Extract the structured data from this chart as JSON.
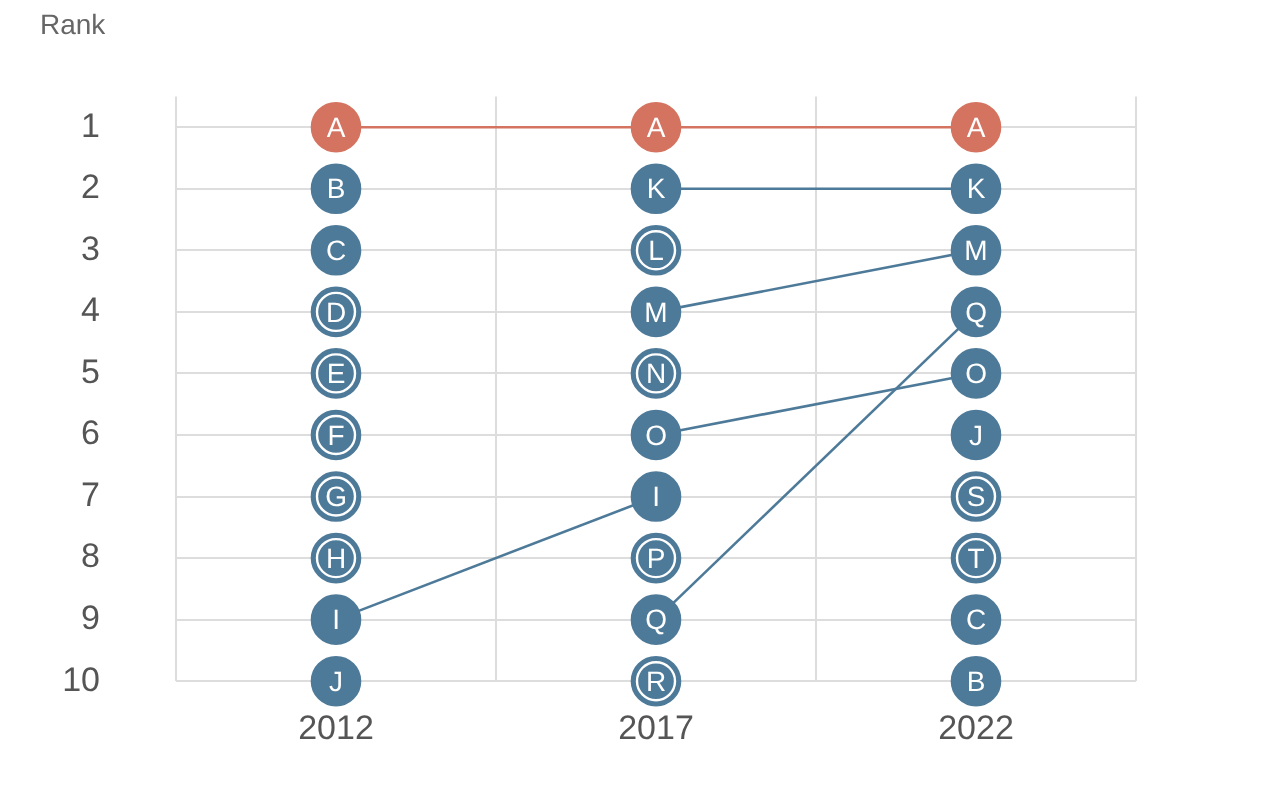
{
  "chart_data": {
    "type": "line",
    "ylabel": "Rank",
    "categories": [
      "2012",
      "2017",
      "2022"
    ],
    "ylim": [
      10,
      0.5
    ],
    "yticks": [
      1,
      2,
      3,
      4,
      5,
      6,
      7,
      8,
      9,
      10
    ],
    "grid": true,
    "legend": false,
    "marker": "circle",
    "series": [
      {
        "name": "A",
        "color": "#d4735f",
        "values": [
          1,
          1,
          1
        ]
      },
      {
        "name": "B",
        "color": "#4e7a99",
        "values": [
          2,
          null,
          10
        ]
      },
      {
        "name": "C",
        "color": "#4e7a99",
        "values": [
          3,
          null,
          9
        ]
      },
      {
        "name": "D",
        "color": "#4e7a99",
        "values": [
          4,
          null,
          null
        ]
      },
      {
        "name": "E",
        "color": "#4e7a99",
        "values": [
          5,
          null,
          null
        ]
      },
      {
        "name": "F",
        "color": "#4e7a99",
        "values": [
          6,
          null,
          null
        ]
      },
      {
        "name": "G",
        "color": "#4e7a99",
        "values": [
          7,
          null,
          null
        ]
      },
      {
        "name": "H",
        "color": "#4e7a99",
        "values": [
          8,
          null,
          null
        ]
      },
      {
        "name": "I",
        "color": "#4e7a99",
        "values": [
          9,
          7,
          null
        ]
      },
      {
        "name": "J",
        "color": "#4e7a99",
        "values": [
          10,
          null,
          6
        ]
      },
      {
        "name": "K",
        "color": "#4e7a99",
        "values": [
          null,
          2,
          2
        ]
      },
      {
        "name": "L",
        "color": "#4e7a99",
        "values": [
          null,
          3,
          null
        ]
      },
      {
        "name": "M",
        "color": "#4e7a99",
        "values": [
          null,
          4,
          3
        ]
      },
      {
        "name": "N",
        "color": "#4e7a99",
        "values": [
          null,
          5,
          null
        ]
      },
      {
        "name": "O",
        "color": "#4e7a99",
        "values": [
          null,
          6,
          5
        ]
      },
      {
        "name": "P",
        "color": "#4e7a99",
        "values": [
          null,
          8,
          null
        ]
      },
      {
        "name": "Q",
        "color": "#4e7a99",
        "values": [
          null,
          9,
          4
        ]
      },
      {
        "name": "R",
        "color": "#4e7a99",
        "values": [
          null,
          10,
          null
        ]
      },
      {
        "name": "S",
        "color": "#4e7a99",
        "values": [
          null,
          null,
          7
        ]
      },
      {
        "name": "T",
        "color": "#4e7a99",
        "values": [
          null,
          null,
          8
        ]
      }
    ]
  }
}
